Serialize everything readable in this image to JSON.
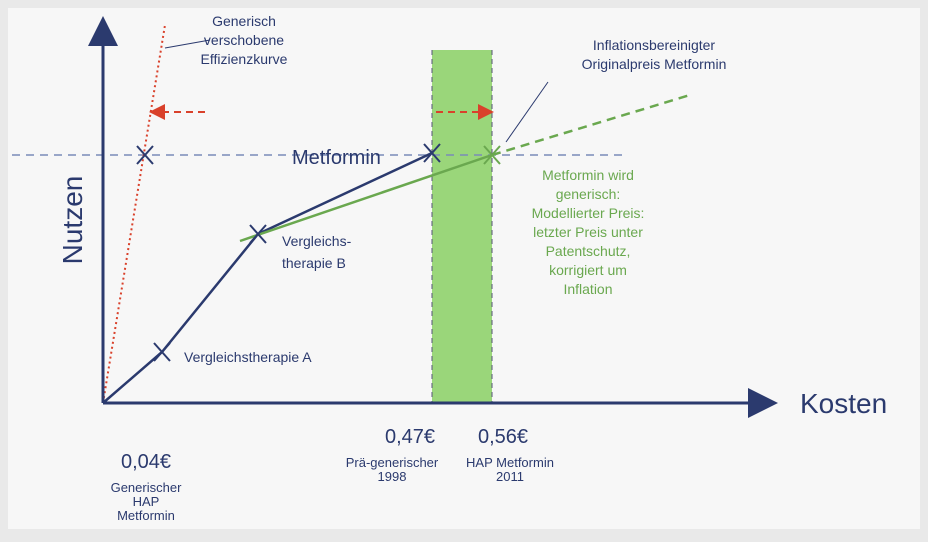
{
  "axes": {
    "x_label": "Kosten",
    "y_label": "Nutzen"
  },
  "efficiency_curve_note": [
    "Generisch",
    "verschobene",
    "Effizienzkurve"
  ],
  "original_price_note": [
    "Inflationsbereinigter",
    "Originalpreis Metformin"
  ],
  "points": {
    "metformin": "Metformin",
    "therapy_b": [
      "Vergleichs-",
      "therapie B"
    ],
    "therapy_a": "Vergleichstherapie A"
  },
  "generic_note": [
    "Metformin wird",
    "generisch:",
    "Modellierter Preis:",
    "letzter Preis unter",
    "Patentschutz,",
    "korrigiert um",
    "Inflation"
  ],
  "prices": [
    {
      "value": "0,04€",
      "caption": [
        "Generischer",
        "HAP",
        "Metformin"
      ]
    },
    {
      "value": "0,47€",
      "caption": [
        "Prä-generischer",
        "1998"
      ]
    },
    {
      "value": "0,56€",
      "caption": [
        "HAP Metformin",
        "2011"
      ]
    }
  ]
}
